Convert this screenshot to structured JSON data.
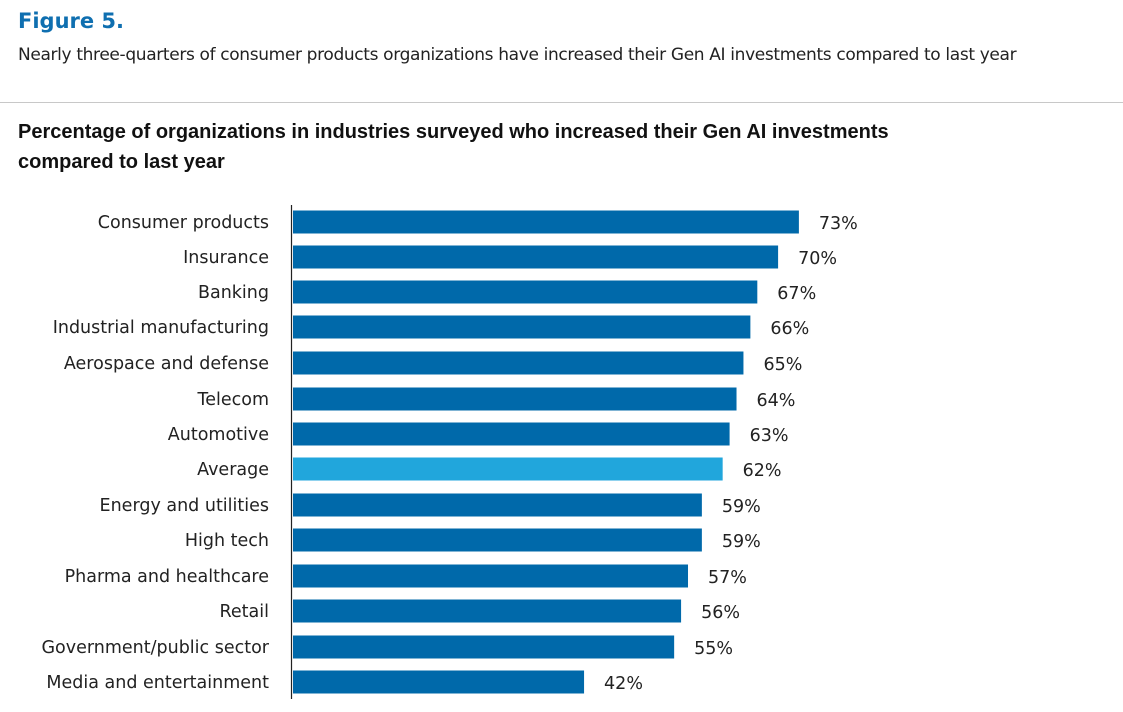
{
  "figure": {
    "label": "Figure 5.",
    "subtitle": "Nearly three-quarters of consumer products organizations have increased their Gen AI investments compared to last year"
  },
  "colors": {
    "figure_label": "#0f6fb0",
    "bar": "#0069aa",
    "highlight_bar": "#21a6dc",
    "divider": "#c8c8c8"
  },
  "chart_data": {
    "type": "bar",
    "orientation": "horizontal",
    "title": "Percentage of organizations in industries surveyed who increased their Gen AI investments compared to last year",
    "xlabel": "",
    "ylabel": "",
    "xlim": [
      0,
      100
    ],
    "grid": false,
    "value_suffix": "%",
    "categories": [
      "Consumer products",
      "Insurance",
      "Banking",
      "Industrial manufacturing",
      "Aerospace and defense",
      "Telecom",
      "Automotive",
      "Average",
      "Energy and utilities",
      "High tech",
      "Pharma and healthcare",
      "Retail",
      "Government/public sector",
      "Media and entertainment"
    ],
    "values": [
      73,
      70,
      67,
      66,
      65,
      64,
      63,
      62,
      59,
      59,
      57,
      56,
      55,
      42
    ],
    "data_labels": [
      "73%",
      "70%",
      "67%",
      "66%",
      "65%",
      "64%",
      "63%",
      "62%",
      "59%",
      "59%",
      "57%",
      "56%",
      "55%",
      "42%"
    ],
    "highlight_category": "Average"
  }
}
